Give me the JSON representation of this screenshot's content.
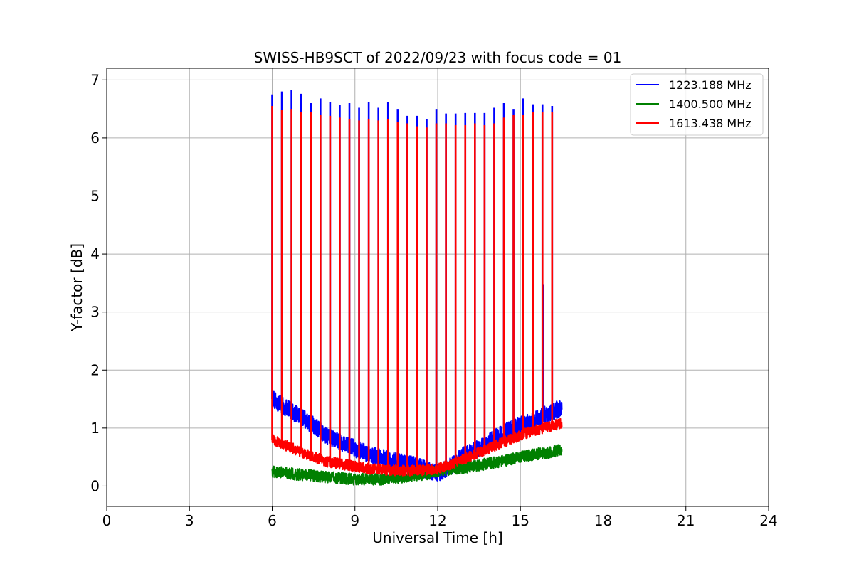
{
  "chart_data": {
    "type": "line",
    "title": "SWISS-HB9SCT of 2022/09/23 with focus code = 01",
    "xlabel": "Universal Time [h]",
    "ylabel": "Y-factor [dB]",
    "xlim": [
      0,
      24
    ],
    "ylim": [
      -0.35,
      7.2
    ],
    "xticks": [
      0,
      3,
      6,
      9,
      12,
      15,
      18,
      21,
      24
    ],
    "xtick_labels": [
      "0",
      "3",
      "6",
      "9",
      "12",
      "15",
      "18",
      "21",
      "24"
    ],
    "yticks": [
      0,
      1,
      2,
      3,
      4,
      5,
      6,
      7
    ],
    "ytick_labels": [
      "0",
      "1",
      "2",
      "3",
      "4",
      "5",
      "6",
      "7"
    ],
    "grid": true,
    "legend_position": "top-right",
    "series": [
      {
        "name": "1223.188 MHz",
        "color": "#0000ff",
        "baseline": {
          "x": [
            6.0,
            6.5,
            7.0,
            7.5,
            8.0,
            8.5,
            9.0,
            9.5,
            10.0,
            10.5,
            11.0,
            11.5,
            12.0,
            12.5,
            13.0,
            13.5,
            14.0,
            14.5,
            15.0,
            15.5,
            16.0,
            16.5
          ],
          "y": [
            1.5,
            1.35,
            1.2,
            1.05,
            0.85,
            0.75,
            0.65,
            0.55,
            0.48,
            0.42,
            0.38,
            0.3,
            0.22,
            0.35,
            0.55,
            0.65,
            0.8,
            0.95,
            1.05,
            1.15,
            1.25,
            1.35
          ],
          "noise": 0.15
        },
        "spike_x": [
          6.0,
          6.35,
          6.7,
          7.05,
          7.4,
          7.75,
          8.1,
          8.45,
          8.8,
          9.15,
          9.5,
          9.85,
          10.2,
          10.55,
          10.9,
          11.25,
          11.6,
          11.95,
          12.3,
          12.65,
          13.0,
          13.35,
          13.7,
          14.05,
          14.4,
          14.75,
          15.1,
          15.45,
          15.8,
          16.15
        ],
        "spike_y": [
          6.75,
          6.8,
          6.83,
          6.76,
          6.6,
          6.68,
          6.62,
          6.57,
          6.6,
          6.52,
          6.62,
          6.52,
          6.62,
          6.5,
          6.38,
          6.38,
          6.32,
          6.5,
          6.42,
          6.42,
          6.43,
          6.43,
          6.43,
          6.52,
          6.6,
          6.5,
          6.68,
          6.58,
          6.58,
          6.55
        ],
        "extra_spikes": [
          {
            "x": 15.83,
            "y": 3.48
          }
        ]
      },
      {
        "name": "1400.500 MHz",
        "color": "#008000",
        "baseline": {
          "x": [
            6.0,
            6.5,
            7.0,
            7.5,
            8.0,
            8.5,
            9.0,
            9.5,
            10.0,
            10.5,
            11.0,
            11.5,
            12.0,
            12.5,
            13.0,
            13.5,
            14.0,
            14.5,
            15.0,
            15.5,
            16.0,
            16.5
          ],
          "y": [
            0.25,
            0.22,
            0.2,
            0.18,
            0.15,
            0.14,
            0.12,
            0.12,
            0.12,
            0.14,
            0.18,
            0.2,
            0.25,
            0.3,
            0.32,
            0.36,
            0.4,
            0.45,
            0.5,
            0.55,
            0.58,
            0.62
          ],
          "noise": 0.1
        },
        "spike_x": [],
        "spike_y": [],
        "extra_spikes": []
      },
      {
        "name": "1613.438 MHz",
        "color": "#ff0000",
        "baseline": {
          "x": [
            6.0,
            6.5,
            7.0,
            7.5,
            8.0,
            8.5,
            9.0,
            9.5,
            10.0,
            10.5,
            11.0,
            11.5,
            12.0,
            12.5,
            13.0,
            13.5,
            14.0,
            14.5,
            15.0,
            15.5,
            16.0,
            16.5
          ],
          "y": [
            0.8,
            0.7,
            0.6,
            0.5,
            0.42,
            0.38,
            0.34,
            0.3,
            0.28,
            0.27,
            0.27,
            0.27,
            0.3,
            0.38,
            0.48,
            0.58,
            0.68,
            0.78,
            0.88,
            0.96,
            1.02,
            1.08
          ],
          "noise": 0.09
        },
        "spike_x": [
          6.0,
          6.35,
          6.7,
          7.05,
          7.4,
          7.75,
          8.1,
          8.45,
          8.8,
          9.15,
          9.5,
          9.85,
          10.2,
          10.55,
          10.9,
          11.25,
          11.6,
          11.95,
          12.3,
          12.65,
          13.0,
          13.35,
          13.7,
          14.05,
          14.4,
          14.75,
          15.1,
          15.45,
          15.8,
          16.15
        ],
        "spike_y": [
          6.55,
          6.48,
          6.5,
          6.45,
          6.45,
          6.4,
          6.38,
          6.35,
          6.33,
          6.3,
          6.32,
          6.3,
          6.32,
          6.28,
          6.25,
          6.2,
          6.18,
          6.25,
          6.25,
          6.22,
          6.22,
          6.25,
          6.22,
          6.25,
          6.35,
          6.4,
          6.4,
          6.45,
          6.45,
          6.45
        ],
        "extra_spikes": []
      }
    ]
  }
}
